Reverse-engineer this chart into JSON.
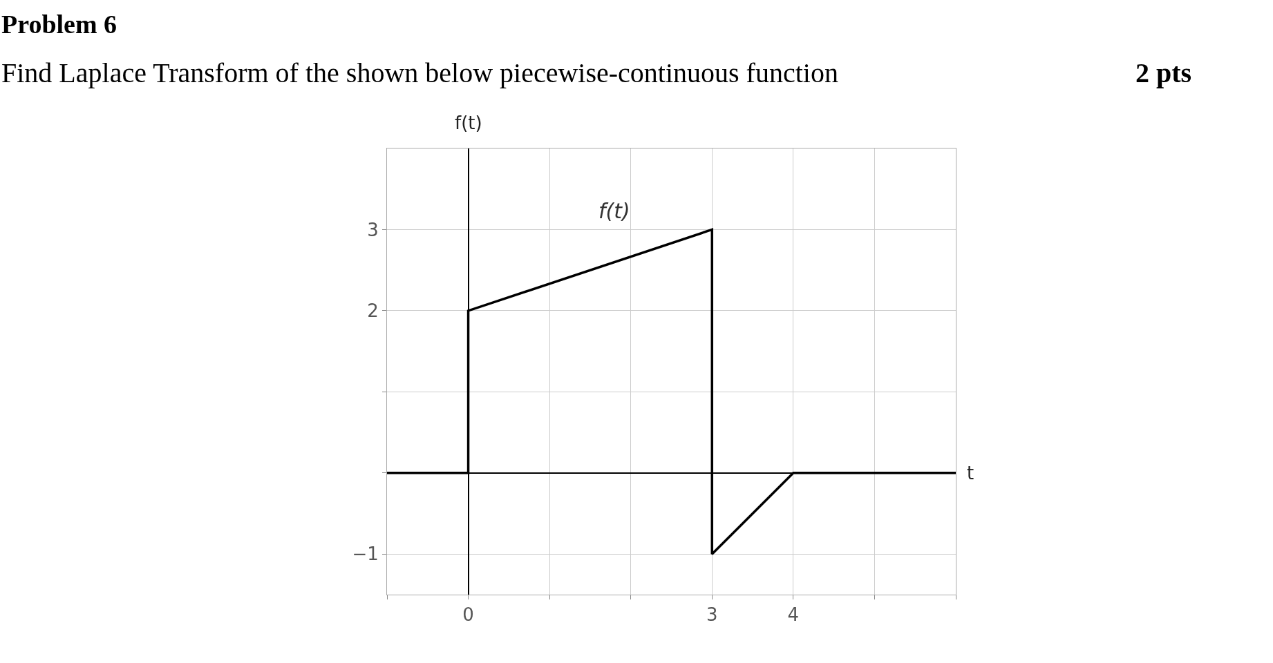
{
  "chart_data": {
    "type": "line",
    "title": "Problem 6",
    "subtitle": "Find Laplace Transform of the shown below piecewise-continuous function",
    "annotations": [
      "2 pts"
    ],
    "xlabel": "t",
    "ylabel": "f(t)",
    "x": [
      -1,
      0,
      0,
      3,
      3,
      4,
      6
    ],
    "series": [
      {
        "name": "f(t)",
        "color": "#000000",
        "values": [
          0,
          0,
          2,
          3,
          -1,
          0,
          0
        ]
      }
    ],
    "xlim": [
      -1,
      6
    ],
    "ylim": [
      -1.5,
      4
    ],
    "xticks": [
      {
        "value": -1,
        "label": null
      },
      0,
      {
        "value": 1,
        "label": null
      },
      {
        "value": 2,
        "label": null
      },
      3,
      4,
      {
        "value": 5,
        "label": null
      },
      {
        "value": 6,
        "label": null
      }
    ],
    "yticks": [
      {
        "value": -1,
        "label": "−1"
      },
      {
        "value": 0,
        "label": null
      },
      {
        "value": 1,
        "label": null
      },
      2,
      3
    ],
    "grid": true,
    "line_style": "solid"
  }
}
